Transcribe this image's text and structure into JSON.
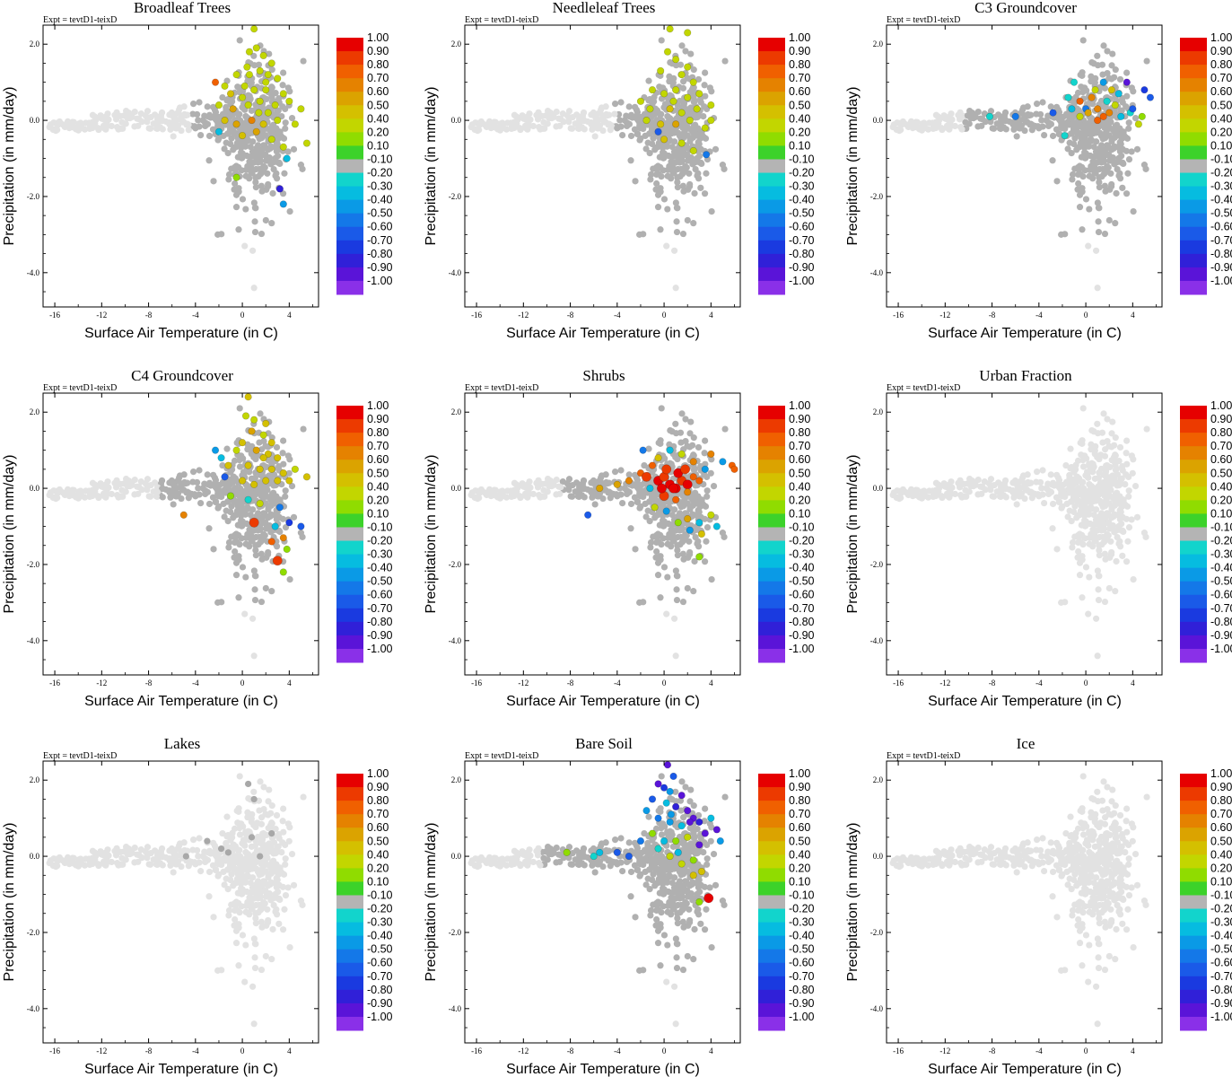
{
  "figure": {
    "expt_label": "Expt = tevtD1-teixD",
    "xlabel": "Surface Air Temperature (in C)",
    "ylabel": "Precipitation (in mm/day)",
    "x_ticks": [
      "-16",
      "-12",
      "-8",
      "-4",
      "0",
      "4"
    ],
    "y_ticks": [
      "2.0",
      "0.0",
      "-2.0",
      "-4.0"
    ],
    "colorbar_labels": [
      "1.00",
      "0.90",
      "0.80",
      "0.70",
      "0.60",
      "0.50",
      "0.40",
      "0.20",
      "0.10",
      "-0.10",
      "-0.20",
      "-0.30",
      "-0.40",
      "-0.50",
      "-0.60",
      "-0.70",
      "-0.80",
      "-0.90",
      "-1.00"
    ],
    "colorbar_colors": [
      "#e60000",
      "#ec3a00",
      "#f06000",
      "#e58200",
      "#dba300",
      "#d4c000",
      "#c2d600",
      "#90dc00",
      "#3cd22a",
      "#b4b4b4",
      "#12d4cc",
      "#06bce0",
      "#0a9ae6",
      "#1478e8",
      "#1a5ae8",
      "#1a3ae0",
      "#3020d8",
      "#5a14d8",
      "#8a30e8"
    ],
    "background_color": "#e2e2e2",
    "neutral_color": "#b0b0b0"
  },
  "chart_data": [
    {
      "type": "scatter",
      "title": "Broadleaf Trees",
      "xlabel": "Surface Air Temperature (in C)",
      "ylabel": "Precipitation (in mm/day)",
      "xlim": [
        -17,
        6.5
      ],
      "ylim": [
        -4.9,
        2.5
      ],
      "colorbar_range": [
        -1.0,
        1.0
      ],
      "colored_points": [
        [
          1.0,
          2.4,
          0.2
        ],
        [
          0.6,
          1.8,
          0.2
        ],
        [
          1.2,
          1.9,
          0.2
        ],
        [
          1.8,
          1.7,
          0.2
        ],
        [
          2.5,
          1.5,
          0.2
        ],
        [
          -0.5,
          1.2,
          0.2
        ],
        [
          0.4,
          1.4,
          0.3
        ],
        [
          1.5,
          1.3,
          0.2
        ],
        [
          2.2,
          1.2,
          0.2
        ],
        [
          3.0,
          1.1,
          0.2
        ],
        [
          -1.5,
          0.9,
          0.3
        ],
        [
          -2.3,
          1.0,
          0.7
        ],
        [
          -1.0,
          0.7,
          0.4
        ],
        [
          0.2,
          0.9,
          0.2
        ],
        [
          1.0,
          0.8,
          0.3
        ],
        [
          2.0,
          0.8,
          0.2
        ],
        [
          3.5,
          0.7,
          0.2
        ],
        [
          -2.0,
          0.4,
          0.3
        ],
        [
          -0.8,
          0.3,
          0.5
        ],
        [
          0.5,
          0.4,
          0.3
        ],
        [
          1.5,
          0.5,
          0.3
        ],
        [
          2.8,
          0.4,
          0.2
        ],
        [
          4.0,
          0.5,
          0.2
        ],
        [
          5.0,
          0.3,
          0.2
        ],
        [
          -1.5,
          0.0,
          0.4
        ],
        [
          -0.5,
          -0.1,
          0.5
        ],
        [
          0.8,
          0.0,
          0.6
        ],
        [
          1.8,
          -0.1,
          0.4
        ],
        [
          3.0,
          0.0,
          0.3
        ],
        [
          4.5,
          -0.1,
          0.2
        ],
        [
          -2.0,
          -0.3,
          -0.3
        ],
        [
          0.0,
          -0.4,
          0.4
        ],
        [
          1.2,
          -0.3,
          0.5
        ],
        [
          2.5,
          -0.5,
          0.3
        ],
        [
          3.5,
          -0.7,
          0.3
        ],
        [
          5.5,
          -0.6,
          0.2
        ],
        [
          3.8,
          -1.0,
          -0.3
        ],
        [
          -0.5,
          -1.5,
          0.1
        ],
        [
          3.2,
          -1.8,
          -0.8
        ],
        [
          3.5,
          -2.2,
          -0.4
        ],
        [
          0.6,
          1.2,
          0.2
        ],
        [
          2.0,
          1.0,
          0.2
        ],
        [
          1.4,
          0.2,
          0.3
        ],
        [
          2.2,
          0.2,
          0.2
        ],
        [
          0.0,
          0.6,
          0.2
        ]
      ]
    },
    {
      "type": "scatter",
      "title": "Needleleaf Trees",
      "xlabel": "Surface Air Temperature (in C)",
      "ylabel": "Precipitation (in mm/day)",
      "xlim": [
        -17,
        6.5
      ],
      "ylim": [
        -4.9,
        2.5
      ],
      "colorbar_range": [
        -1.0,
        1.0
      ],
      "colored_points": [
        [
          0.5,
          2.4,
          0.2
        ],
        [
          2.0,
          2.3,
          0.2
        ],
        [
          0.3,
          1.8,
          0.2
        ],
        [
          1.0,
          1.6,
          0.2
        ],
        [
          -0.3,
          1.3,
          0.2
        ],
        [
          1.5,
          1.2,
          0.2
        ],
        [
          2.5,
          1.0,
          0.2
        ],
        [
          -1.0,
          0.8,
          0.2
        ],
        [
          0.0,
          0.7,
          0.2
        ],
        [
          1.0,
          0.8,
          0.2
        ],
        [
          2.0,
          0.6,
          0.2
        ],
        [
          3.0,
          0.7,
          0.2
        ],
        [
          4.0,
          0.4,
          0.2
        ],
        [
          -2.0,
          0.5,
          0.2
        ],
        [
          -1.2,
          0.3,
          0.3
        ],
        [
          0.5,
          0.3,
          0.4
        ],
        [
          1.5,
          0.2,
          0.3
        ],
        [
          2.8,
          0.3,
          0.2
        ],
        [
          -1.5,
          0.0,
          0.3
        ],
        [
          -0.3,
          -0.1,
          0.4
        ],
        [
          1.0,
          -0.1,
          0.5
        ],
        [
          2.2,
          0.0,
          0.3
        ],
        [
          3.5,
          -0.2,
          0.2
        ],
        [
          0.0,
          -0.5,
          0.4
        ],
        [
          1.5,
          -0.6,
          0.3
        ],
        [
          2.5,
          -0.8,
          0.2
        ],
        [
          -0.5,
          -0.3,
          -0.6
        ],
        [
          3.6,
          -0.9,
          -0.5
        ],
        [
          4.0,
          0.0,
          0.2
        ],
        [
          0.8,
          0.5,
          0.3
        ],
        [
          2.0,
          1.4,
          0.2
        ]
      ]
    },
    {
      "type": "scatter",
      "title": "C3 Groundcover",
      "xlabel": "Surface Air Temperature (in C)",
      "ylabel": "Precipitation (in mm/day)",
      "xlim": [
        -17,
        6.5
      ],
      "ylim": [
        -4.9,
        2.5
      ],
      "colorbar_range": [
        -1.0,
        1.0
      ],
      "colored_points": [
        [
          -8.2,
          0.1,
          -0.2
        ],
        [
          -6.0,
          0.1,
          -0.5
        ],
        [
          -2.8,
          0.2,
          -0.6
        ],
        [
          -1.8,
          -0.4,
          -0.2
        ],
        [
          -1.5,
          0.6,
          -0.2
        ],
        [
          -1.0,
          1.0,
          -0.2
        ],
        [
          -0.5,
          0.5,
          0.7
        ],
        [
          0.0,
          0.3,
          -0.5
        ],
        [
          0.5,
          0.6,
          0.6
        ],
        [
          1.0,
          0.3,
          0.6
        ],
        [
          1.5,
          0.1,
          0.7
        ],
        [
          2.0,
          0.2,
          0.6
        ],
        [
          1.0,
          0.0,
          0.7
        ],
        [
          0.2,
          0.2,
          0.5
        ],
        [
          -0.5,
          0.1,
          0.3
        ],
        [
          2.5,
          0.4,
          0.2
        ],
        [
          3.0,
          0.1,
          -0.3
        ],
        [
          3.8,
          0.2,
          -0.2
        ],
        [
          4.5,
          -0.1,
          0.2
        ],
        [
          4.0,
          0.3,
          -0.6
        ],
        [
          5.0,
          0.8,
          -0.7
        ],
        [
          5.5,
          0.6,
          -0.6
        ],
        [
          3.5,
          1.0,
          -0.9
        ],
        [
          1.5,
          1.0,
          -0.4
        ],
        [
          2.8,
          0.7,
          -0.3
        ],
        [
          1.8,
          0.5,
          -0.2
        ],
        [
          0.8,
          0.8,
          0.2
        ],
        [
          -1.2,
          0.3,
          -0.3
        ],
        [
          4.8,
          0.1,
          0.1
        ],
        [
          2.2,
          0.8,
          0.4
        ]
      ]
    },
    {
      "type": "scatter",
      "title": "C4 Groundcover",
      "xlabel": "Surface Air Temperature (in C)",
      "ylabel": "Precipitation (in mm/day)",
      "xlim": [
        -17,
        6.5
      ],
      "ylim": [
        -4.9,
        2.5
      ],
      "colorbar_range": [
        -1.0,
        1.0
      ],
      "colored_points": [
        [
          0.5,
          2.4,
          0.4
        ],
        [
          0.3,
          1.9,
          0.2
        ],
        [
          1.0,
          1.8,
          0.3
        ],
        [
          2.0,
          1.7,
          0.4
        ],
        [
          0.8,
          1.5,
          0.5
        ],
        [
          1.8,
          1.4,
          0.3
        ],
        [
          2.5,
          1.2,
          0.4
        ],
        [
          0.0,
          1.2,
          0.4
        ],
        [
          -0.5,
          1.0,
          0.3
        ],
        [
          1.2,
          1.0,
          0.5
        ],
        [
          2.2,
          0.9,
          0.4
        ],
        [
          3.0,
          0.8,
          0.4
        ],
        [
          -2.3,
          1.0,
          -0.4
        ],
        [
          -1.8,
          0.8,
          -0.3
        ],
        [
          -1.2,
          0.6,
          0.4
        ],
        [
          0.5,
          0.6,
          0.4
        ],
        [
          1.5,
          0.5,
          0.4
        ],
        [
          2.5,
          0.5,
          0.4
        ],
        [
          3.5,
          0.4,
          0.4
        ],
        [
          4.5,
          0.5,
          0.2
        ],
        [
          -1.5,
          0.3,
          -0.6
        ],
        [
          0.0,
          0.2,
          0.4
        ],
        [
          1.0,
          0.1,
          0.4
        ],
        [
          2.0,
          0.2,
          0.4
        ],
        [
          3.0,
          0.2,
          0.4
        ],
        [
          4.0,
          0.2,
          0.4
        ],
        [
          5.5,
          0.3,
          0.4
        ],
        [
          -1.0,
          -0.2,
          0.1
        ],
        [
          0.5,
          -0.3,
          -0.2
        ],
        [
          1.5,
          -0.4,
          0.3
        ],
        [
          3.2,
          -0.5,
          -0.5
        ],
        [
          4.0,
          -0.9,
          -0.7
        ],
        [
          5.0,
          -1.0,
          -0.6
        ],
        [
          1.0,
          -0.9,
          0.8
        ],
        [
          3.5,
          -1.3,
          0.6
        ],
        [
          2.5,
          -1.4,
          0.7
        ],
        [
          3.8,
          -1.6,
          0.1
        ],
        [
          3.0,
          -1.9,
          0.8
        ],
        [
          3.5,
          -2.2,
          0.1
        ],
        [
          -5.0,
          -0.7,
          0.6
        ],
        [
          2.8,
          -1.0,
          -0.3
        ],
        [
          1.8,
          0.8,
          0.4
        ]
      ]
    },
    {
      "type": "scatter",
      "title": "Shrubs",
      "xlabel": "Surface Air Temperature (in C)",
      "ylabel": "Precipitation (in mm/day)",
      "xlim": [
        -17,
        6.5
      ],
      "ylim": [
        -4.9,
        2.5
      ],
      "colorbar_range": [
        -1.0,
        1.0
      ],
      "colored_points": [
        [
          -5.5,
          0.0,
          0.5
        ],
        [
          -4.0,
          0.1,
          0.5
        ],
        [
          -3.0,
          0.2,
          0.6
        ],
        [
          -2.0,
          0.4,
          0.7
        ],
        [
          -1.5,
          0.3,
          0.8
        ],
        [
          -0.5,
          0.2,
          0.9
        ],
        [
          0.0,
          0.3,
          0.8
        ],
        [
          0.5,
          0.1,
          0.9
        ],
        [
          1.0,
          0.0,
          0.9
        ],
        [
          1.5,
          0.2,
          0.8
        ],
        [
          2.0,
          0.1,
          0.9
        ],
        [
          2.5,
          0.3,
          0.7
        ],
        [
          0.2,
          0.5,
          0.8
        ],
        [
          1.2,
          0.4,
          0.9
        ],
        [
          -1.0,
          0.6,
          0.7
        ],
        [
          0.0,
          -0.2,
          0.8
        ],
        [
          1.0,
          -0.3,
          0.7
        ],
        [
          2.0,
          -0.1,
          0.6
        ],
        [
          3.0,
          0.2,
          0.7
        ],
        [
          -1.8,
          1.0,
          -0.5
        ],
        [
          -0.5,
          0.8,
          0.4
        ],
        [
          0.5,
          1.0,
          -0.3
        ],
        [
          1.5,
          0.9,
          0.3
        ],
        [
          2.5,
          0.7,
          0.6
        ],
        [
          3.5,
          0.5,
          -0.4
        ],
        [
          4.0,
          0.9,
          0.6
        ],
        [
          5.0,
          0.7,
          -0.4
        ],
        [
          5.8,
          0.6,
          0.7
        ],
        [
          6.0,
          0.5,
          0.7
        ],
        [
          -1.2,
          0.0,
          -0.3
        ],
        [
          -0.8,
          -0.5,
          0.2
        ],
        [
          0.2,
          -0.6,
          -0.4
        ],
        [
          2.0,
          -0.8,
          0.5
        ],
        [
          3.0,
          -0.9,
          -0.3
        ],
        [
          4.0,
          -0.7,
          0.3
        ],
        [
          -6.5,
          -0.7,
          -0.6
        ],
        [
          1.2,
          -0.9,
          0.1
        ],
        [
          2.2,
          -1.1,
          -0.4
        ],
        [
          3.2,
          -1.2,
          0.4
        ],
        [
          4.5,
          -1.0,
          -0.3
        ],
        [
          3.0,
          -1.8,
          0.1
        ],
        [
          0.8,
          0.0,
          0.9
        ],
        [
          1.8,
          0.5,
          0.8
        ],
        [
          -0.2,
          0.0,
          0.9
        ]
      ]
    },
    {
      "type": "scatter",
      "title": "Urban Fraction",
      "xlabel": "Surface Air Temperature (in C)",
      "ylabel": "Precipitation (in mm/day)",
      "xlim": [
        -17,
        6.5
      ],
      "ylim": [
        -4.9,
        2.5
      ],
      "colorbar_range": [
        -1.0,
        1.0
      ],
      "colored_points": []
    },
    {
      "type": "scatter",
      "title": "Lakes",
      "xlabel": "Surface Air Temperature (in C)",
      "ylabel": "Precipitation (in mm/day)",
      "xlim": [
        -17,
        6.5
      ],
      "ylim": [
        -4.9,
        2.5
      ],
      "colorbar_range": [
        -1.0,
        1.0
      ],
      "colored_points": []
    },
    {
      "type": "scatter",
      "title": "Bare Soil",
      "xlabel": "Surface Air Temperature (in C)",
      "ylabel": "Precipitation (in mm/day)",
      "xlim": [
        -17,
        6.5
      ],
      "ylim": [
        -4.9,
        2.5
      ],
      "colorbar_range": [
        -1.0,
        1.0
      ],
      "colored_points": [
        [
          0.3,
          2.4,
          -0.9
        ],
        [
          0.8,
          2.1,
          -0.6
        ],
        [
          -0.5,
          1.9,
          -0.9
        ],
        [
          0.0,
          1.8,
          -0.7
        ],
        [
          0.5,
          1.7,
          -0.4
        ],
        [
          1.5,
          1.6,
          -0.9
        ],
        [
          -1.0,
          1.5,
          -0.6
        ],
        [
          0.2,
          1.4,
          -0.3
        ],
        [
          1.0,
          1.3,
          -0.8
        ],
        [
          2.0,
          1.2,
          -0.9
        ],
        [
          2.5,
          1.0,
          -0.9
        ],
        [
          3.0,
          0.9,
          -0.8
        ],
        [
          -1.5,
          1.2,
          -0.4
        ],
        [
          -0.5,
          1.0,
          -0.5
        ],
        [
          0.5,
          0.9,
          -0.4
        ],
        [
          1.5,
          0.8,
          -0.3
        ],
        [
          4.0,
          1.0,
          -0.3
        ],
        [
          4.5,
          0.7,
          -0.9
        ],
        [
          3.5,
          0.6,
          -0.9
        ],
        [
          -2.0,
          0.4,
          -0.5
        ],
        [
          -1.0,
          0.6,
          0.1
        ],
        [
          0.0,
          0.4,
          -0.3
        ],
        [
          1.0,
          0.4,
          0.1
        ],
        [
          2.0,
          0.5,
          0.2
        ],
        [
          3.0,
          0.3,
          -0.9
        ],
        [
          -4.0,
          0.1,
          -0.6
        ],
        [
          -5.5,
          0.1,
          -0.3
        ],
        [
          -6.0,
          0.0,
          -0.2
        ],
        [
          -8.3,
          0.1,
          0.1
        ],
        [
          -3.0,
          0.0,
          -0.6
        ],
        [
          0.5,
          0.0,
          0.2
        ],
        [
          1.5,
          -0.2,
          0.3
        ],
        [
          2.5,
          -0.1,
          0.1
        ],
        [
          3.2,
          -0.4,
          0.4
        ],
        [
          3.8,
          -1.1,
          0.9
        ],
        [
          3.0,
          -1.2,
          0.1
        ],
        [
          2.5,
          -0.5,
          0.4
        ],
        [
          -0.5,
          0.2,
          -0.2
        ],
        [
          1.2,
          0.1,
          -0.3
        ],
        [
          4.8,
          0.4,
          -0.4
        ],
        [
          0.6,
          1.1,
          -0.4
        ],
        [
          2.2,
          0.9,
          -0.9
        ]
      ]
    },
    {
      "type": "scatter",
      "title": "Ice",
      "xlabel": "Surface Air Temperature (in C)",
      "ylabel": "Precipitation (in mm/day)",
      "xlim": [
        -17,
        6.5
      ],
      "ylim": [
        -4.9,
        2.5
      ],
      "colorbar_range": [
        -1.0,
        1.0
      ],
      "colored_points": []
    }
  ]
}
